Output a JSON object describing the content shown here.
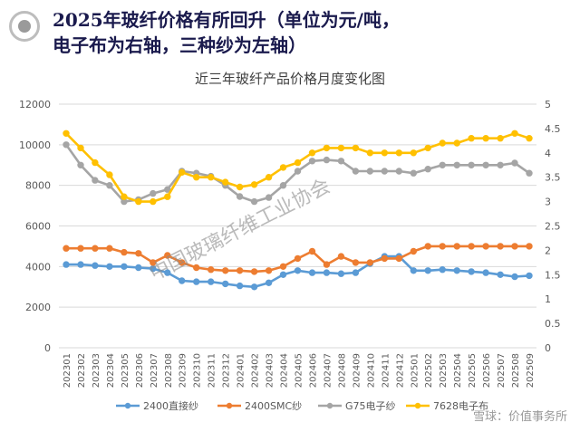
{
  "header": {
    "line1": "2025年玻纤价格有所回升（单位为元/吨，",
    "line2": "电子布为右轴，三种纱为左轴）"
  },
  "watermark": "中国玻璃纤维工业协会",
  "footer": {
    "text": "雪球：价值事务所"
  },
  "colors": {
    "direct": "#5b9bd5",
    "smc": "#ed7d31",
    "g75": "#a5a5a5",
    "e7628": "#ffc000"
  },
  "chart_data": {
    "type": "line",
    "title": "近三年玻纤产品价格月度变化图",
    "categories": [
      "202301",
      "202302",
      "202303",
      "202304",
      "202305",
      "202306",
      "202307",
      "202308",
      "202309",
      "202310",
      "202311",
      "202312",
      "202401",
      "202402",
      "202403",
      "202404",
      "202405",
      "202406",
      "202407",
      "202408",
      "202409",
      "202410",
      "202411",
      "202412",
      "202501",
      "202502",
      "202503",
      "202504",
      "202505",
      "202506",
      "202507",
      "202508",
      "202509"
    ],
    "y_left": {
      "range": [
        0,
        12000
      ],
      "ticks": [
        "0",
        "2000",
        "4000",
        "6000",
        "8000",
        "10000",
        "12000"
      ]
    },
    "y_right": {
      "range": [
        0,
        5
      ],
      "ticks": [
        "0",
        "0.5",
        "1",
        "1.5",
        "2",
        "2.5",
        "3",
        "3.5",
        "4",
        "4.5",
        "5"
      ]
    },
    "grid": true,
    "legend_position": "bottom",
    "series": [
      {
        "name": "2400直接纱",
        "axis": "left",
        "values": [
          4100,
          4100,
          4050,
          4000,
          4000,
          3950,
          3900,
          3700,
          3300,
          3250,
          3250,
          3150,
          3050,
          3000,
          3200,
          3600,
          3800,
          3700,
          3700,
          3650,
          3700,
          4150,
          4500,
          4500,
          3800,
          3800,
          3850,
          3800,
          3750,
          3700,
          3600,
          3500,
          3550
        ]
      },
      {
        "name": "2400SMC纱",
        "axis": "left",
        "values": [
          4900,
          4900,
          4900,
          4900,
          4700,
          4650,
          4200,
          4550,
          4200,
          3950,
          3850,
          3800,
          3800,
          3750,
          3800,
          4000,
          4400,
          4750,
          4100,
          4500,
          4200,
          4200,
          4400,
          4400,
          4750,
          5000,
          5000,
          5000,
          5000,
          5000,
          5000,
          5000,
          5000
        ]
      },
      {
        "name": "G75电子纱",
        "axis": "left",
        "values": [
          10000,
          9000,
          8250,
          8000,
          7200,
          7300,
          7600,
          7800,
          8700,
          8600,
          8450,
          8000,
          7450,
          7200,
          7400,
          8000,
          8700,
          9200,
          9250,
          9200,
          8700,
          8700,
          8700,
          8700,
          8600,
          8800,
          9000,
          9000,
          9000,
          9000,
          9000,
          9100,
          8600
        ]
      },
      {
        "name": "7628电子布",
        "axis": "right",
        "values": [
          4.4,
          4.1,
          3.8,
          3.55,
          3.1,
          3.0,
          3.0,
          3.1,
          3.6,
          3.5,
          3.5,
          3.4,
          3.3,
          3.35,
          3.5,
          3.7,
          3.8,
          4.0,
          4.1,
          4.1,
          4.1,
          4.0,
          4.0,
          4.0,
          4.0,
          4.1,
          4.2,
          4.2,
          4.3,
          4.3,
          4.3,
          4.4,
          4.3
        ]
      }
    ]
  }
}
